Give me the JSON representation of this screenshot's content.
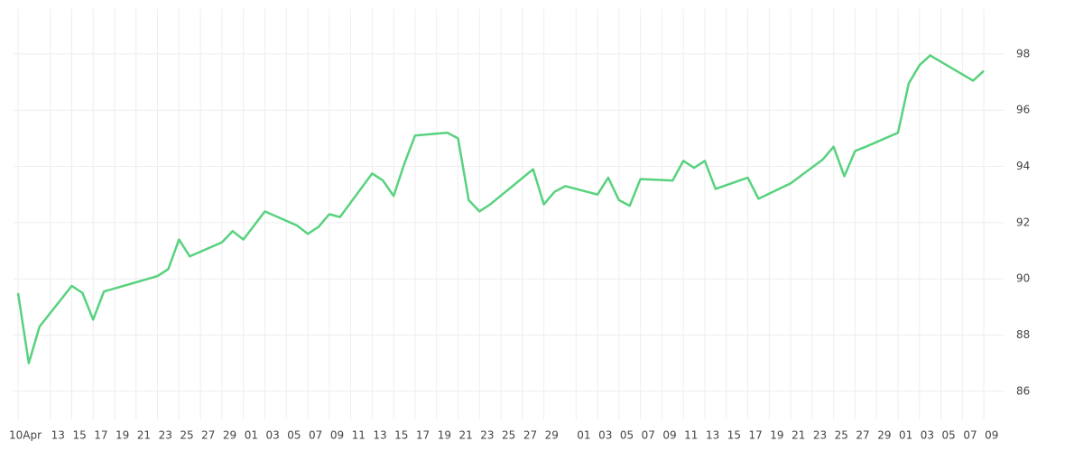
{
  "chart_data": {
    "type": "line",
    "x": [
      "04-10",
      "04-11",
      "04-12",
      "04-15",
      "04-16",
      "04-17",
      "04-18",
      "04-23",
      "04-24",
      "04-25",
      "04-26",
      "04-29",
      "04-30",
      "05-01",
      "05-03",
      "05-06",
      "05-07",
      "05-08",
      "05-09",
      "05-10",
      "05-13",
      "05-14",
      "05-15",
      "05-16",
      "05-17",
      "05-20",
      "05-21",
      "05-22",
      "05-23",
      "05-24",
      "05-28",
      "05-29",
      "05-30",
      "05-31",
      "06-03",
      "06-04",
      "06-05",
      "06-06",
      "06-07",
      "06-10",
      "06-11",
      "06-12",
      "06-13",
      "06-14",
      "06-17",
      "06-18",
      "06-21",
      "06-24",
      "06-25",
      "06-26",
      "06-27",
      "06-28",
      "07-01",
      "07-02",
      "07-03",
      "07-04",
      "07-08",
      "07-09"
    ],
    "series": [
      {
        "color": "#57d27e",
        "values": [
          89.5,
          87.0,
          88.3,
          89.75,
          89.5,
          88.55,
          89.55,
          90.1,
          90.35,
          91.4,
          90.8,
          91.3,
          91.7,
          91.4,
          92.4,
          91.9,
          91.6,
          91.85,
          92.3,
          92.2,
          93.75,
          93.5,
          92.95,
          94.1,
          95.1,
          95.2,
          95.0,
          92.8,
          92.4,
          92.65,
          93.9,
          92.65,
          93.1,
          93.3,
          93.0,
          93.6,
          92.8,
          92.6,
          93.55,
          93.5,
          94.2,
          93.95,
          94.2,
          93.2,
          93.6,
          92.85,
          93.4,
          94.25,
          94.7,
          93.65,
          94.55,
          94.7,
          95.2,
          96.95,
          97.6,
          97.95,
          97.05,
          97.4
        ]
      }
    ],
    "xlim": [
      "04-10",
      "07-10"
    ],
    "xticks": [
      {
        "value": "04-10",
        "label": "10Apr"
      },
      {
        "value": "04-13",
        "label": "13"
      },
      {
        "value": "04-15",
        "label": "15"
      },
      {
        "value": "04-17",
        "label": "17"
      },
      {
        "value": "04-19",
        "label": "19"
      },
      {
        "value": "04-21",
        "label": "21"
      },
      {
        "value": "04-23",
        "label": "23"
      },
      {
        "value": "04-25",
        "label": "25"
      },
      {
        "value": "04-27",
        "label": "27"
      },
      {
        "value": "04-29",
        "label": "29"
      },
      {
        "value": "05-01",
        "label": "01"
      },
      {
        "value": "05-03",
        "label": "03"
      },
      {
        "value": "05-05",
        "label": "05"
      },
      {
        "value": "05-07",
        "label": "07"
      },
      {
        "value": "05-09",
        "label": "09"
      },
      {
        "value": "05-11",
        "label": "11"
      },
      {
        "value": "05-13",
        "label": "13"
      },
      {
        "value": "05-15",
        "label": "15"
      },
      {
        "value": "05-17",
        "label": "17"
      },
      {
        "value": "05-19",
        "label": "19"
      },
      {
        "value": "05-21",
        "label": "21"
      },
      {
        "value": "05-23",
        "label": "23"
      },
      {
        "value": "05-25",
        "label": "25"
      },
      {
        "value": "05-27",
        "label": "27"
      },
      {
        "value": "05-29",
        "label": "29"
      },
      {
        "value": "06-01",
        "label": "01"
      },
      {
        "value": "06-03",
        "label": "03"
      },
      {
        "value": "06-05",
        "label": "05"
      },
      {
        "value": "06-07",
        "label": "07"
      },
      {
        "value": "06-09",
        "label": "09"
      },
      {
        "value": "06-11",
        "label": "11"
      },
      {
        "value": "06-13",
        "label": "13"
      },
      {
        "value": "06-15",
        "label": "15"
      },
      {
        "value": "06-17",
        "label": "17"
      },
      {
        "value": "06-19",
        "label": "19"
      },
      {
        "value": "06-21",
        "label": "21"
      },
      {
        "value": "06-23",
        "label": "23"
      },
      {
        "value": "06-25",
        "label": "25"
      },
      {
        "value": "06-27",
        "label": "27"
      },
      {
        "value": "06-29",
        "label": "29"
      },
      {
        "value": "07-01",
        "label": "01"
      },
      {
        "value": "07-03",
        "label": "03"
      },
      {
        "value": "07-05",
        "label": "05"
      },
      {
        "value": "07-07",
        "label": "07"
      },
      {
        "value": "07-09",
        "label": "09"
      }
    ],
    "ylim": [
      85,
      99.6
    ],
    "yticks": [
      86,
      88,
      90,
      92,
      94,
      96,
      98
    ],
    "grid": true
  }
}
